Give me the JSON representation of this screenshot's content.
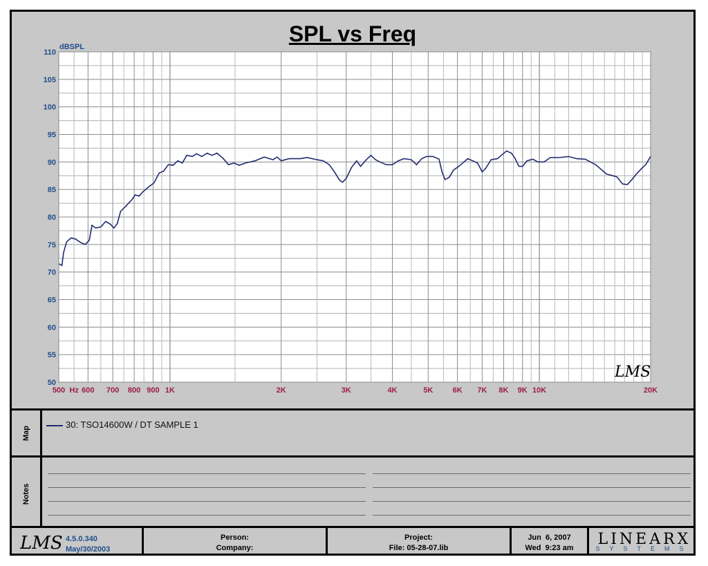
{
  "chart_data": {
    "type": "line",
    "title": "SPL vs Freq",
    "ylabel": "dBSPL",
    "xscale": "log",
    "xlim": [
      500,
      20000
    ],
    "ylim": [
      50,
      110
    ],
    "grid": true,
    "y_ticks": [
      50,
      55,
      60,
      65,
      70,
      75,
      80,
      85,
      90,
      95,
      100,
      105,
      110
    ],
    "x_ticks": [
      {
        "value": 500,
        "label": "500"
      },
      {
        "value": 550,
        "label": "Hz"
      },
      {
        "value": 600,
        "label": "600"
      },
      {
        "value": 700,
        "label": "700"
      },
      {
        "value": 800,
        "label": "800"
      },
      {
        "value": 900,
        "label": "900"
      },
      {
        "value": 1000,
        "label": "1K"
      },
      {
        "value": 2000,
        "label": "2K"
      },
      {
        "value": 3000,
        "label": "3K"
      },
      {
        "value": 4000,
        "label": "4K"
      },
      {
        "value": 5000,
        "label": "5K"
      },
      {
        "value": 6000,
        "label": "6K"
      },
      {
        "value": 7000,
        "label": "7K"
      },
      {
        "value": 8000,
        "label": "8K"
      },
      {
        "value": 9000,
        "label": "9K"
      },
      {
        "value": 10000,
        "label": "10K"
      },
      {
        "value": 20000,
        "label": "20K"
      }
    ],
    "series": [
      {
        "name": "30: TSO14600W / DT SAMPLE 1",
        "color": "#1f2a6e",
        "points": [
          [
            500,
            71.5
          ],
          [
            510,
            71.2
          ],
          [
            515,
            73.5
          ],
          [
            525,
            75.5
          ],
          [
            540,
            76.2
          ],
          [
            555,
            76.0
          ],
          [
            575,
            75.3
          ],
          [
            590,
            75.0
          ],
          [
            605,
            75.8
          ],
          [
            615,
            78.5
          ],
          [
            630,
            78.0
          ],
          [
            650,
            78.2
          ],
          [
            670,
            79.2
          ],
          [
            690,
            78.7
          ],
          [
            705,
            78.0
          ],
          [
            720,
            78.8
          ],
          [
            735,
            81.0
          ],
          [
            760,
            82.0
          ],
          [
            790,
            83.2
          ],
          [
            805,
            84.0
          ],
          [
            825,
            83.8
          ],
          [
            845,
            84.6
          ],
          [
            870,
            85.3
          ],
          [
            905,
            86.2
          ],
          [
            935,
            88.0
          ],
          [
            960,
            88.3
          ],
          [
            990,
            89.5
          ],
          [
            1020,
            89.4
          ],
          [
            1050,
            90.2
          ],
          [
            1080,
            89.8
          ],
          [
            1110,
            91.2
          ],
          [
            1150,
            91.0
          ],
          [
            1180,
            91.5
          ],
          [
            1220,
            91.0
          ],
          [
            1260,
            91.6
          ],
          [
            1300,
            91.2
          ],
          [
            1340,
            91.6
          ],
          [
            1390,
            90.7
          ],
          [
            1440,
            89.5
          ],
          [
            1490,
            89.8
          ],
          [
            1540,
            89.4
          ],
          [
            1600,
            89.8
          ],
          [
            1700,
            90.2
          ],
          [
            1800,
            90.9
          ],
          [
            1900,
            90.4
          ],
          [
            1950,
            90.9
          ],
          [
            2000,
            90.2
          ],
          [
            2100,
            90.6
          ],
          [
            2250,
            90.6
          ],
          [
            2350,
            90.8
          ],
          [
            2500,
            90.4
          ],
          [
            2600,
            90.2
          ],
          [
            2700,
            89.5
          ],
          [
            2800,
            88.0
          ],
          [
            2870,
            86.8
          ],
          [
            2930,
            86.3
          ],
          [
            3000,
            87.0
          ],
          [
            3100,
            89.0
          ],
          [
            3200,
            90.2
          ],
          [
            3280,
            89.2
          ],
          [
            3400,
            90.4
          ],
          [
            3500,
            91.2
          ],
          [
            3600,
            90.4
          ],
          [
            3700,
            90.0
          ],
          [
            3850,
            89.5
          ],
          [
            4000,
            89.5
          ],
          [
            4150,
            90.2
          ],
          [
            4300,
            90.6
          ],
          [
            4500,
            90.4
          ],
          [
            4650,
            89.5
          ],
          [
            4800,
            90.6
          ],
          [
            4950,
            91.0
          ],
          [
            5150,
            91.0
          ],
          [
            5350,
            90.5
          ],
          [
            5450,
            88.2
          ],
          [
            5550,
            86.8
          ],
          [
            5700,
            87.2
          ],
          [
            5850,
            88.5
          ],
          [
            6050,
            89.2
          ],
          [
            6250,
            90.0
          ],
          [
            6400,
            90.6
          ],
          [
            6600,
            90.2
          ],
          [
            6800,
            89.8
          ],
          [
            7000,
            88.2
          ],
          [
            7150,
            88.8
          ],
          [
            7400,
            90.4
          ],
          [
            7700,
            90.6
          ],
          [
            7950,
            91.4
          ],
          [
            8150,
            92.0
          ],
          [
            8400,
            91.6
          ],
          [
            8600,
            90.6
          ],
          [
            8800,
            89.2
          ],
          [
            9000,
            89.2
          ],
          [
            9250,
            90.2
          ],
          [
            9600,
            90.5
          ],
          [
            9900,
            90.0
          ],
          [
            10300,
            90.0
          ],
          [
            10700,
            90.8
          ],
          [
            11300,
            90.8
          ],
          [
            12000,
            91.0
          ],
          [
            12600,
            90.6
          ],
          [
            13300,
            90.5
          ],
          [
            14200,
            89.5
          ],
          [
            15200,
            87.8
          ],
          [
            16200,
            87.3
          ],
          [
            16800,
            86.0
          ],
          [
            17300,
            85.9
          ],
          [
            17800,
            86.8
          ],
          [
            18300,
            87.8
          ],
          [
            18900,
            88.8
          ],
          [
            19400,
            89.5
          ],
          [
            20000,
            91.0
          ]
        ]
      }
    ]
  },
  "watermark": "LMS",
  "map_label": "Map",
  "legend_entry": "30: TSO14600W / DT SAMPLE 1",
  "notes_label": "Notes",
  "footer": {
    "version": "4.5.0.340",
    "build_date": "May/30/2003",
    "person_label": "Person:",
    "company_label": "Company:",
    "project_label": "Project:",
    "file_label": "File: 05-28-07.lib",
    "date": "Jun  6, 2007",
    "time": "Wed  9:23 am",
    "brand_top": "LINEARX",
    "brand_bottom": "SYSTEMS"
  }
}
